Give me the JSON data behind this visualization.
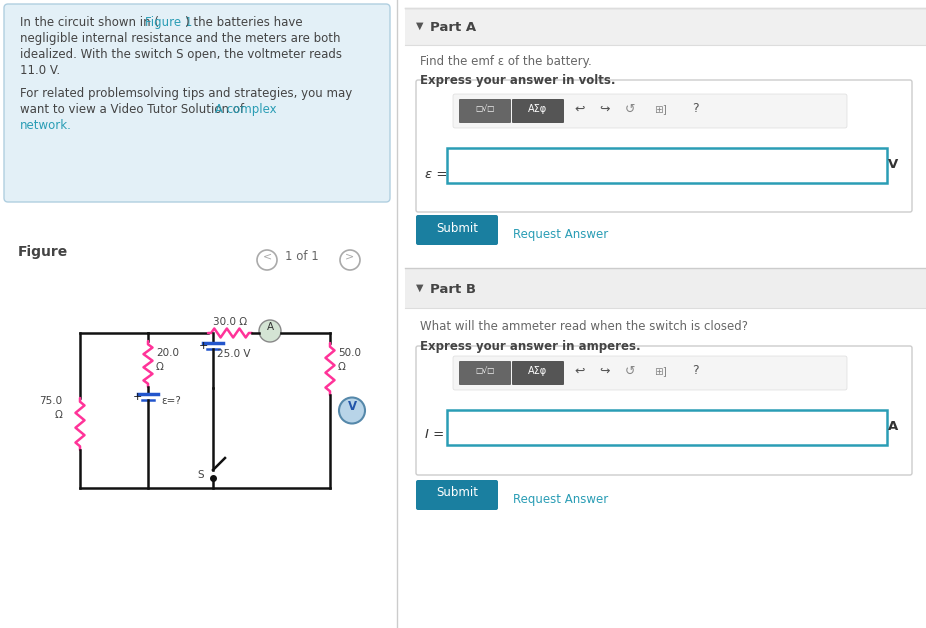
{
  "bg_color": "#ffffff",
  "info_bg": "#e3f0f7",
  "info_border": "#b0cfe0",
  "text_color": "#444444",
  "link_color": "#2a9db5",
  "part_a_header_bg": "#f0f0f0",
  "part_b_header_bg": "#eeeeee",
  "submit_color": "#1a7fa0",
  "input_border": "#2a9db5",
  "resistor_color": "#ff3399",
  "wire_color": "#111111",
  "battery_color": "#2255cc",
  "ammeter_face": "#d4e4d4",
  "ammeter_edge": "#999999",
  "voltmeter_face": "#b8d4e8",
  "voltmeter_edge": "#5588aa",
  "voltmeter_text": "#2255aa",
  "nav_color": "#aaaaaa",
  "divider_color": "#cccccc",
  "toolbar_btn1": "#666666",
  "toolbar_btn2": "#555555",
  "line1a": "In the circuit shown in (",
  "line1b": "Figure 1",
  "line1c": ") the batteries have",
  "line2": "negligible internal resistance and the meters are both",
  "line3": "idealized. With the switch S open, the voltmeter reads",
  "line4": "11.0 V.",
  "line5": "For related problemsolving tips and strategies, you may",
  "line6a": "want to view a Video Tutor Solution of ",
  "line6b": "A complex",
  "line7": "network.",
  "figure_label": "Figure",
  "nav_text": "1 of 1",
  "r1_a": "75.0",
  "r1_b": "Ω",
  "r2_a": "20.0",
  "r2_b": "Ω",
  "r3": "30.0 Ω",
  "r4_a": "50.0",
  "r4_b": "Ω",
  "battery_emf": "ε=?",
  "battery_v": "25.0 V",
  "switch_s": "S",
  "plus": "+",
  "ammeter_lbl": "A",
  "voltmeter_lbl": "V",
  "part_a_title": "Part A",
  "part_a_q": "Find the emf ε of the battery.",
  "part_a_express": "Express your answer in volts.",
  "part_a_var": "ε =",
  "part_a_unit": "V",
  "part_b_title": "Part B",
  "part_b_q": "What will the ammeter read when the switch is closed?",
  "part_b_express": "Express your answer in amperes.",
  "part_b_var": "I =",
  "part_b_unit": "A",
  "submit": "Submit",
  "request": "Request Answer",
  "toolbar1": "□√□",
  "toolbar2": "AΣφ"
}
